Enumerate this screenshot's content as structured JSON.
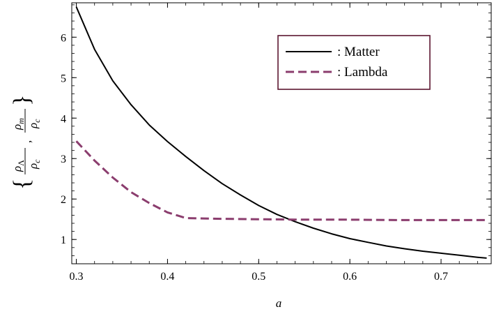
{
  "chart_data": {
    "type": "line",
    "title": "",
    "xlabel": "a",
    "ylabel": "{ρΛ/ρc , ρm/ρc}",
    "xlim": [
      0.295,
      0.755
    ],
    "ylim": [
      0.4,
      6.85
    ],
    "x_ticks": [
      0.3,
      0.4,
      0.5,
      0.6,
      0.7
    ],
    "x_tick_labels": [
      "0.3",
      "0.4",
      "0.5",
      "0.6",
      "0.7"
    ],
    "y_ticks": [
      1,
      2,
      3,
      4,
      5,
      6
    ],
    "y_tick_labels": [
      "1",
      "2",
      "3",
      "4",
      "5",
      "6"
    ],
    "grid": false,
    "legend_position": "top-right",
    "series": [
      {
        "name": "Matter",
        "legend_label": ": Matter",
        "style": "solid",
        "color": "#000000",
        "x": [
          0.3,
          0.32,
          0.34,
          0.36,
          0.38,
          0.4,
          0.42,
          0.44,
          0.46,
          0.48,
          0.5,
          0.52,
          0.54,
          0.56,
          0.58,
          0.6,
          0.62,
          0.64,
          0.66,
          0.68,
          0.7,
          0.72,
          0.74,
          0.75
        ],
        "y": [
          6.75,
          5.7,
          4.92,
          4.33,
          3.83,
          3.42,
          3.05,
          2.7,
          2.38,
          2.1,
          1.84,
          1.62,
          1.44,
          1.28,
          1.14,
          1.02,
          0.93,
          0.84,
          0.77,
          0.71,
          0.66,
          0.61,
          0.56,
          0.54
        ]
      },
      {
        "name": "Lambda",
        "legend_label": ": Lambda",
        "style": "dashed",
        "color": "#8b3d6e",
        "x": [
          0.3,
          0.32,
          0.34,
          0.36,
          0.38,
          0.4,
          0.42,
          0.44,
          0.46,
          0.5,
          0.55,
          0.6,
          0.65,
          0.7,
          0.75
        ],
        "y": [
          3.43,
          2.95,
          2.53,
          2.17,
          1.9,
          1.67,
          1.53,
          1.52,
          1.51,
          1.5,
          1.49,
          1.49,
          1.48,
          1.48,
          1.48
        ]
      }
    ]
  },
  "colors": {
    "axis": "#000000",
    "legend_border": "#5c1630",
    "matter": "#000000",
    "lambda": "#8b3d6e"
  }
}
